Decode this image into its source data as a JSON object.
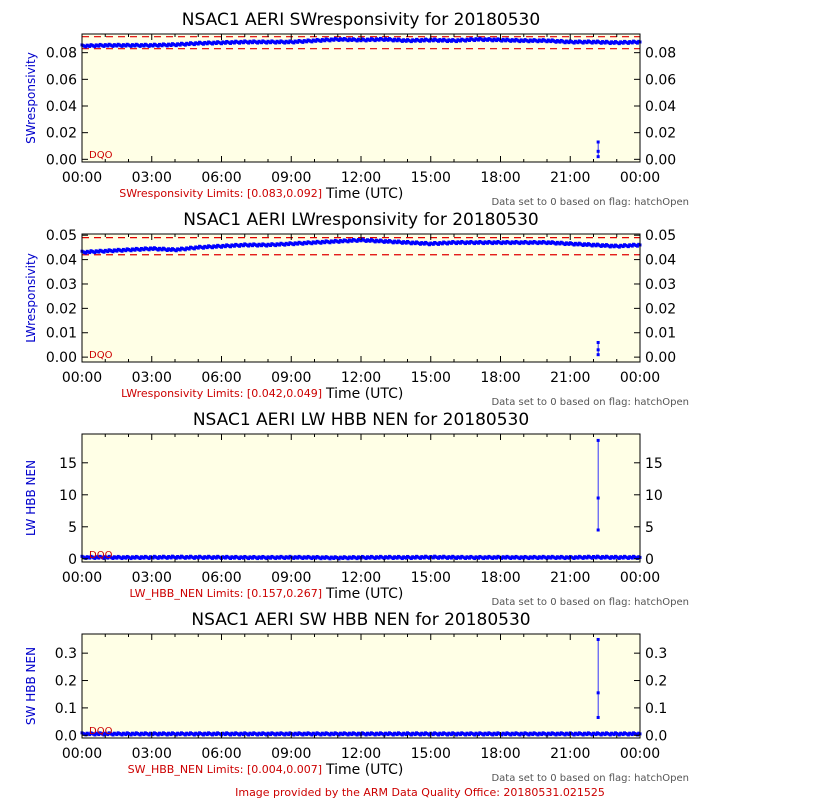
{
  "footer": "Image provided by the ARM Data Quality Office: 20180531.021525",
  "chart_data": [
    {
      "type": "scatter",
      "title": "NSAC1 AERI SWresponsivity for 20180530",
      "ylabel": "SWresponsivity",
      "xlabel": "Time (UTC)",
      "limits_text": "SWresponsivity Limits: [0.083,0.092]",
      "dqo": "DQO",
      "note": "Data set to 0 based on flag: hatchOpen",
      "xlim": [
        0,
        24
      ],
      "ylim": [
        -0.002,
        0.094
      ],
      "xticks": [
        "00:00",
        "03:00",
        "06:00",
        "09:00",
        "12:00",
        "15:00",
        "18:00",
        "21:00",
        "00:00"
      ],
      "yticks": [
        0.0,
        0.02,
        0.04,
        0.06,
        0.08
      ],
      "ytick_labels": [
        "0.00",
        "0.02",
        "0.04",
        "0.06",
        "0.08"
      ],
      "limits": [
        0.083,
        0.092
      ],
      "series": [
        {
          "x": [
            0,
            1,
            2,
            3,
            4,
            5,
            6,
            7,
            8,
            9,
            10,
            11,
            12,
            13,
            14,
            15,
            16,
            17,
            18,
            19,
            20,
            21,
            22,
            23,
            24
          ],
          "values": [
            0.085,
            0.0855,
            0.0855,
            0.0855,
            0.086,
            0.087,
            0.0875,
            0.088,
            0.088,
            0.088,
            0.089,
            0.09,
            0.0895,
            0.09,
            0.089,
            0.0895,
            0.089,
            0.09,
            0.0895,
            0.089,
            0.089,
            0.088,
            0.088,
            0.0875,
            0.088
          ]
        }
      ],
      "spike": {
        "x": 22.2,
        "values": [
          0.013,
          0.006,
          0.002
        ]
      }
    },
    {
      "type": "scatter",
      "title": "NSAC1 AERI LWresponsivity for 20180530",
      "ylabel": "LWresponsivity",
      "xlabel": "Time (UTC)",
      "limits_text": "LWresponsivity Limits: [0.042,0.049]",
      "dqo": "DQO",
      "note": "Data set to 0 based on flag: hatchOpen",
      "xlim": [
        0,
        24
      ],
      "ylim": [
        -0.002,
        0.0505
      ],
      "xticks": [
        "00:00",
        "03:00",
        "06:00",
        "09:00",
        "12:00",
        "15:00",
        "18:00",
        "21:00",
        "00:00"
      ],
      "yticks": [
        0.0,
        0.01,
        0.02,
        0.03,
        0.04,
        0.05
      ],
      "ytick_labels": [
        "0.00",
        "0.01",
        "0.02",
        "0.03",
        "0.04",
        "0.05"
      ],
      "limits": [
        0.042,
        0.049
      ],
      "series": [
        {
          "x": [
            0,
            1,
            2,
            3,
            4,
            5,
            6,
            7,
            8,
            9,
            10,
            11,
            12,
            13,
            14,
            15,
            16,
            17,
            18,
            19,
            20,
            21,
            22,
            23,
            24
          ],
          "values": [
            0.043,
            0.0435,
            0.044,
            0.0445,
            0.044,
            0.045,
            0.0455,
            0.046,
            0.046,
            0.0465,
            0.047,
            0.0475,
            0.048,
            0.0475,
            0.047,
            0.0465,
            0.047,
            0.047,
            0.047,
            0.047,
            0.047,
            0.0465,
            0.046,
            0.0455,
            0.046
          ]
        }
      ],
      "spike": {
        "x": 22.2,
        "values": [
          0.006,
          0.003,
          0.001
        ]
      }
    },
    {
      "type": "scatter",
      "title": "NSAC1 AERI LW HBB NEN for 20180530",
      "ylabel": "LW HBB NEN",
      "xlabel": "Time (UTC)",
      "limits_text": "LW_HBB_NEN Limits: [0.157,0.267]",
      "dqo": "DQO",
      "note": "Data set to 0 based on flag: hatchOpen",
      "xlim": [
        0,
        24
      ],
      "ylim": [
        -0.5,
        19.5
      ],
      "xticks": [
        "00:00",
        "03:00",
        "06:00",
        "09:00",
        "12:00",
        "15:00",
        "18:00",
        "21:00",
        "00:00"
      ],
      "yticks": [
        0,
        5,
        10,
        15
      ],
      "ytick_labels": [
        "0",
        "5",
        "10",
        "15"
      ],
      "limits": [
        0.157,
        0.267
      ],
      "series": [
        {
          "x": [
            0,
            1,
            2,
            3,
            4,
            5,
            6,
            7,
            8,
            9,
            10,
            11,
            12,
            13,
            14,
            15,
            16,
            17,
            18,
            19,
            20,
            21,
            22,
            23,
            24
          ],
          "values": [
            0.22,
            0.22,
            0.2,
            0.22,
            0.25,
            0.23,
            0.22,
            0.2,
            0.2,
            0.22,
            0.2,
            0.15,
            0.2,
            0.22,
            0.2,
            0.25,
            0.22,
            0.2,
            0.22,
            0.2,
            0.22,
            0.2,
            0.25,
            0.22,
            0.22
          ]
        }
      ],
      "spike": {
        "x": 22.2,
        "values": [
          18.5,
          9.5,
          4.5
        ]
      }
    },
    {
      "type": "scatter",
      "title": "NSAC1 AERI SW HBB NEN for 20180530",
      "ylabel": "SW HBB NEN",
      "xlabel": "Time (UTC)",
      "limits_text": "SW_HBB_NEN Limits: [0.004,0.007]",
      "dqo": "DQO",
      "note": "Data set to 0 based on flag: hatchOpen",
      "xlim": [
        0,
        24
      ],
      "ylim": [
        -0.01,
        0.37
      ],
      "xticks": [
        "00:00",
        "03:00",
        "06:00",
        "09:00",
        "12:00",
        "15:00",
        "18:00",
        "21:00",
        "00:00"
      ],
      "yticks": [
        0.0,
        0.1,
        0.2,
        0.3
      ],
      "ytick_labels": [
        "0.0",
        "0.1",
        "0.2",
        "0.3"
      ],
      "limits": [
        0.004,
        0.007
      ],
      "series": [
        {
          "x": [
            0,
            1,
            2,
            3,
            4,
            5,
            6,
            7,
            8,
            9,
            10,
            11,
            12,
            13,
            14,
            15,
            16,
            17,
            18,
            19,
            20,
            21,
            22,
            23,
            24
          ],
          "values": [
            0.005,
            0.005,
            0.005,
            0.005,
            0.005,
            0.005,
            0.005,
            0.005,
            0.005,
            0.005,
            0.005,
            0.005,
            0.005,
            0.005,
            0.005,
            0.005,
            0.005,
            0.005,
            0.005,
            0.005,
            0.005,
            0.005,
            0.005,
            0.005,
            0.005
          ]
        }
      ],
      "spike": {
        "x": 22.2,
        "values": [
          0.35,
          0.155,
          0.065
        ]
      }
    }
  ],
  "colors": {
    "plot_bg": "#ffffe6",
    "data": "#0000ff",
    "limit": "#e00000",
    "axis": "#000000"
  }
}
